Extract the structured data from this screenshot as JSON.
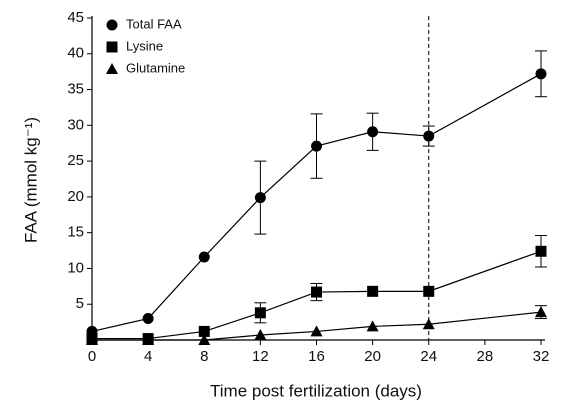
{
  "chart_data": {
    "type": "line",
    "x_label": "Time post fertilization (days)",
    "y_label": "FAA (mmol kg⁻¹)",
    "x": [
      0,
      4,
      8,
      12,
      16,
      20,
      24,
      32
    ],
    "series": [
      {
        "name": "Total FAA",
        "color": "#000000",
        "marker": "circle",
        "values": [
          1.2,
          3.0,
          11.6,
          19.9,
          27.1,
          29.1,
          28.5,
          37.2
        ],
        "errors": [
          null,
          null,
          null,
          5.1,
          4.5,
          2.6,
          1.4,
          3.2
        ]
      },
      {
        "name": "Lysine",
        "color": "#000000",
        "marker": "square",
        "values": [
          0.2,
          0.2,
          1.2,
          3.8,
          6.7,
          6.8,
          6.8,
          12.4
        ],
        "errors": [
          null,
          null,
          null,
          1.4,
          1.2,
          null,
          null,
          2.2
        ]
      },
      {
        "name": "Glutamine",
        "color": "#000000",
        "marker": "triangle",
        "values": [
          0,
          0,
          0,
          0.7,
          1.2,
          1.9,
          2.2,
          3.9
        ],
        "errors": [
          null,
          null,
          null,
          null,
          null,
          null,
          null,
          0.9
        ]
      }
    ],
    "xlim": [
      0,
      32
    ],
    "xticks": [
      0,
      4,
      8,
      12,
      16,
      20,
      24,
      28,
      32
    ],
    "ylim": [
      0,
      45
    ],
    "yticks": [
      5,
      10,
      15,
      20,
      25,
      30,
      35,
      40,
      45
    ],
    "vline": 24,
    "legend": "upper-left"
  }
}
